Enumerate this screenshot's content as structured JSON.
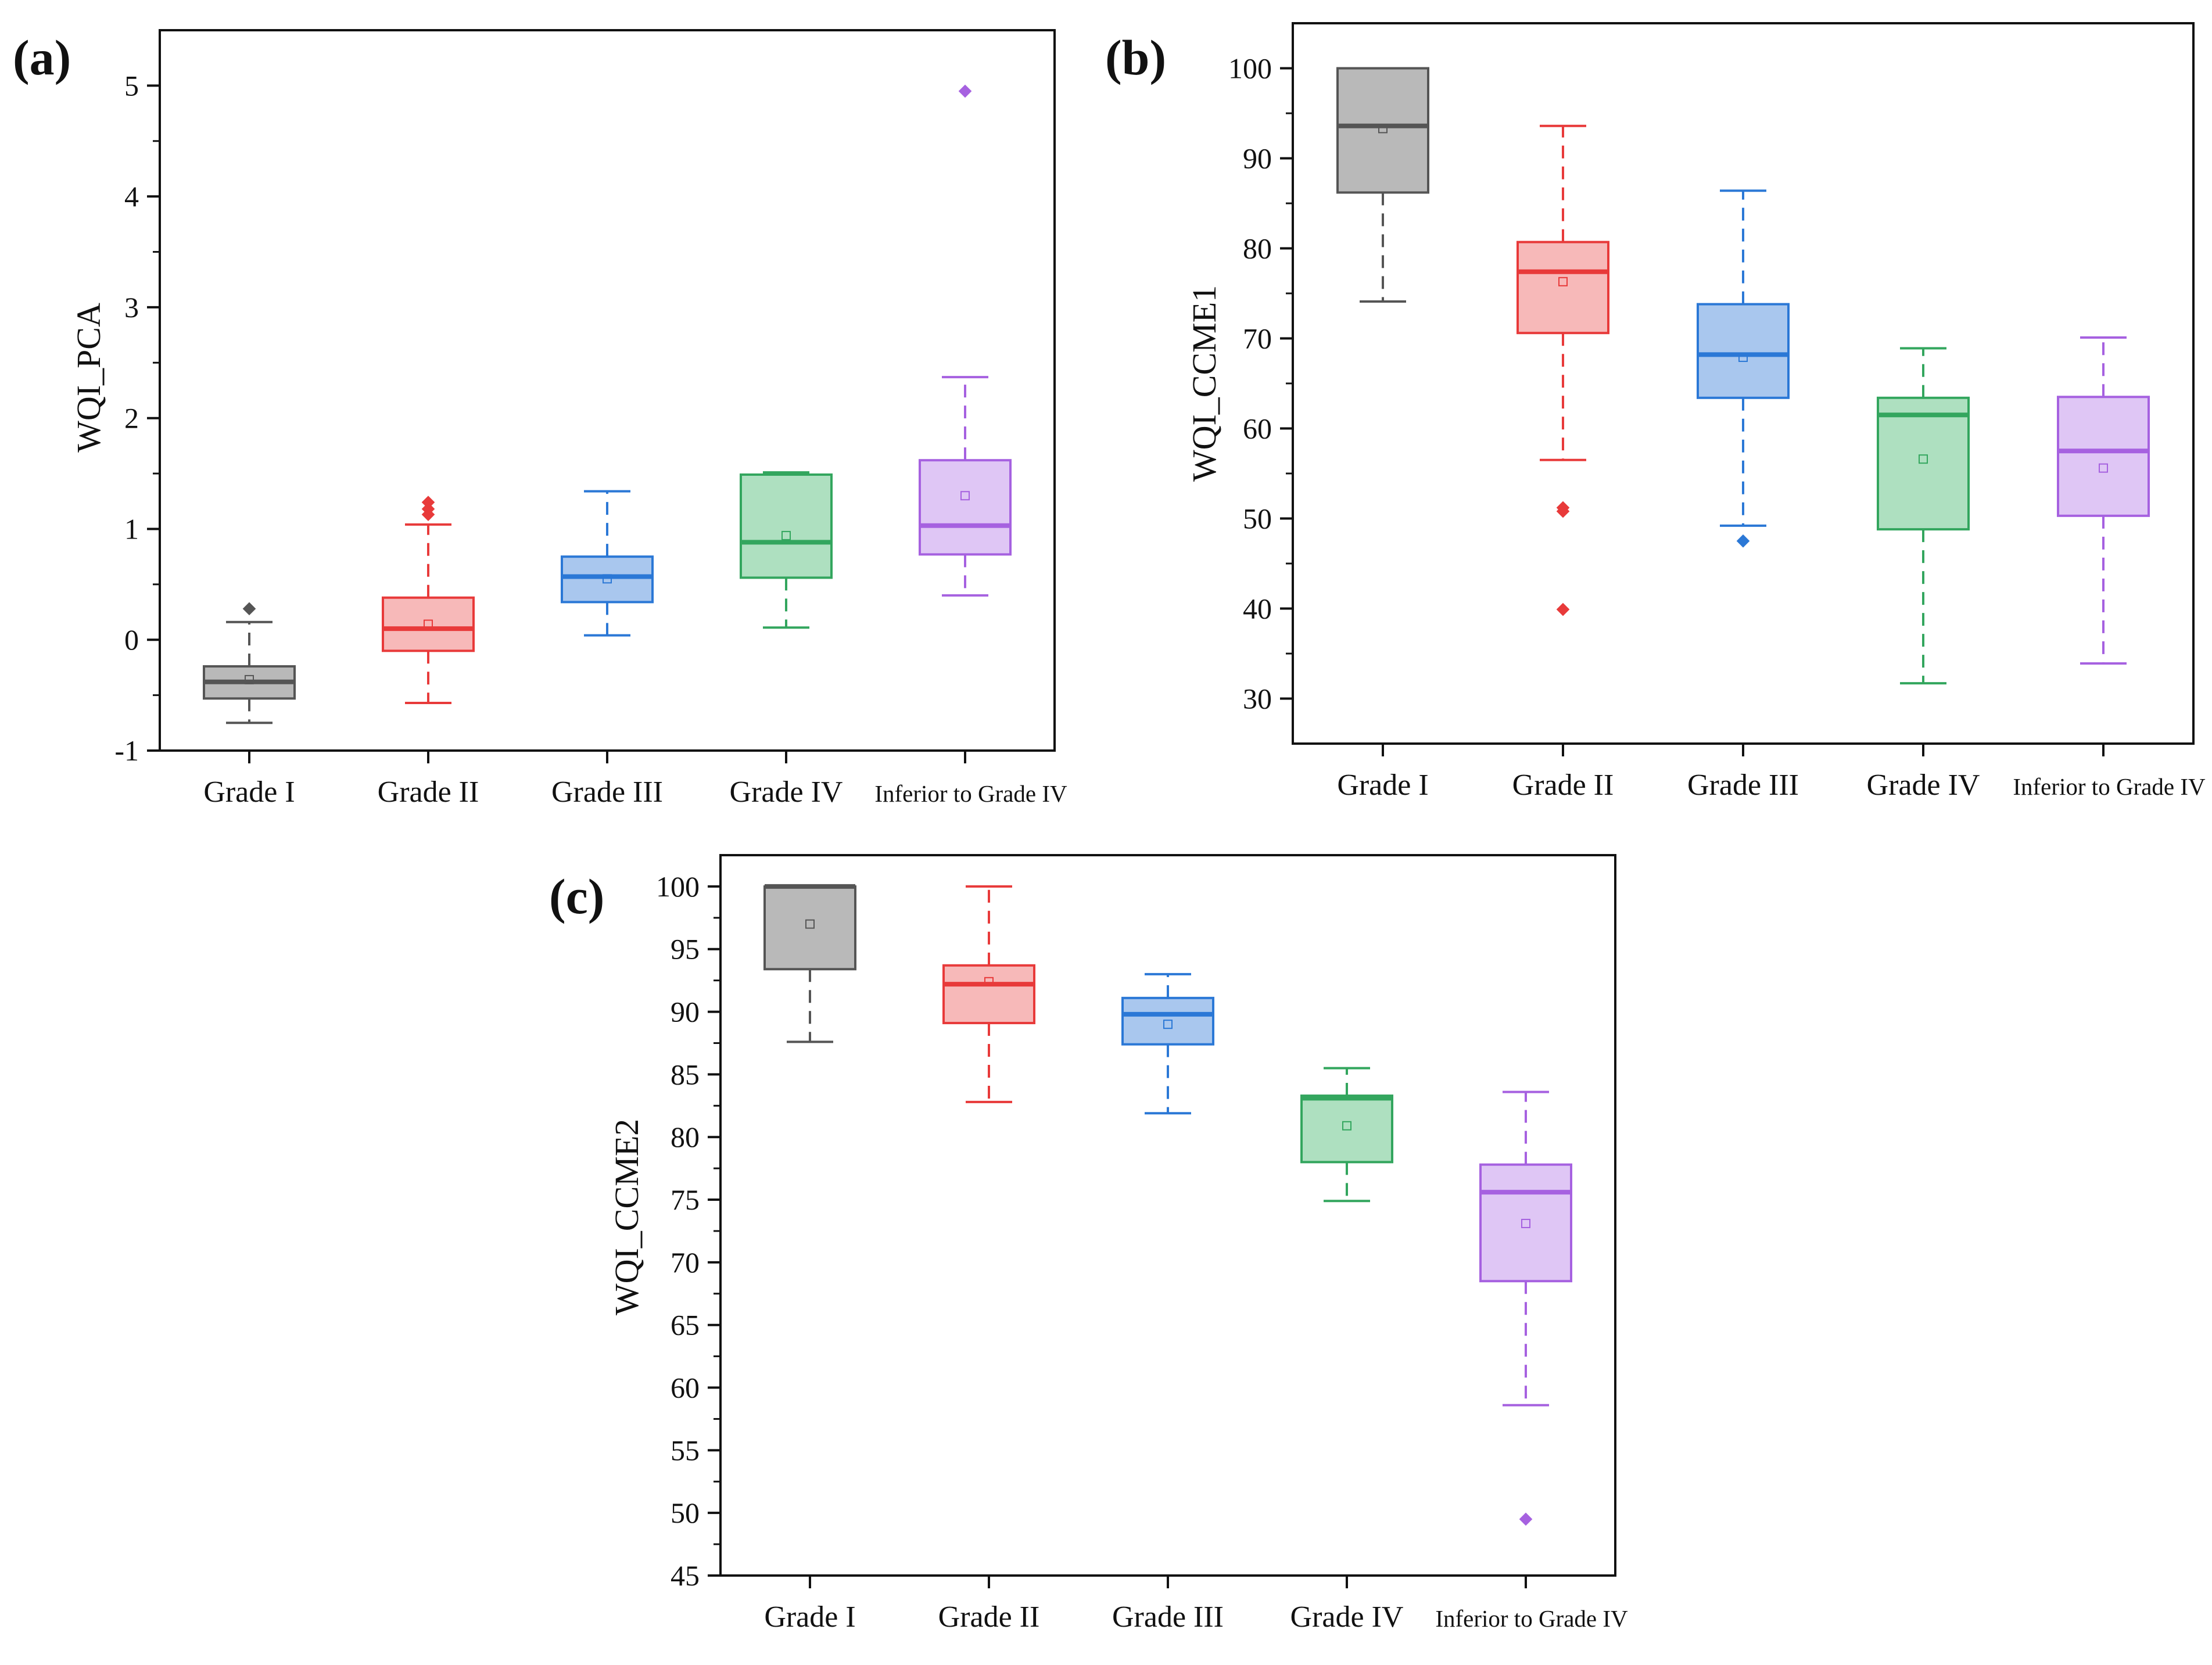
{
  "figure": {
    "categories": [
      "Grade I",
      "Grade II",
      "Grade III",
      "Grade IV",
      "Inferior to Grade IV"
    ],
    "colors": {
      "Grade I": "#555555",
      "Grade II": "#e83a3a",
      "Grade III": "#2b78d6",
      "Grade IV": "#33a65e",
      "Inferior to Grade IV": "#a661e0"
    },
    "fill_colors": {
      "Grade I": "#b9b9b9",
      "Grade II": "#f7b9b9",
      "Grade III": "#a9c7ee",
      "Grade IV": "#aee0c0",
      "Inferior to Grade IV": "#dfc6f5"
    }
  },
  "chart_data": [
    {
      "type": "box",
      "panel": "(a)",
      "title": "",
      "xlabel": "",
      "ylabel": "WQI_PCA",
      "ylim": [
        -1,
        5.5
      ],
      "yticks": [
        -1,
        0,
        1,
        2,
        3,
        4,
        5
      ],
      "ytick_labels": [
        "-1",
        "0",
        "1",
        "2",
        "3",
        "4",
        "5"
      ],
      "minor_ticks": true,
      "categories": [
        "Grade I",
        "Grade II",
        "Grade III",
        "Grade IV",
        "Inferior to Grade IV"
      ],
      "boxes": [
        {
          "whisker_low": -0.75,
          "q1": -0.53,
          "median": -0.38,
          "q3": -0.24,
          "whisker_high": 0.16,
          "mean": -0.36,
          "outliers": [
            0.28
          ]
        },
        {
          "whisker_low": -0.57,
          "q1": -0.1,
          "median": 0.1,
          "q3": 0.38,
          "whisker_high": 1.04,
          "mean": 0.14,
          "outliers": [
            1.13,
            1.18,
            1.24
          ]
        },
        {
          "whisker_low": 0.04,
          "q1": 0.34,
          "median": 0.57,
          "q3": 0.75,
          "whisker_high": 1.34,
          "mean": 0.55,
          "outliers": []
        },
        {
          "whisker_low": 0.11,
          "q1": 0.56,
          "median": 0.88,
          "q3": 1.49,
          "whisker_high": 1.51,
          "mean": 0.94,
          "outliers": []
        },
        {
          "whisker_low": 0.4,
          "q1": 0.77,
          "median": 1.03,
          "q3": 1.62,
          "whisker_high": 2.37,
          "mean": 1.3,
          "outliers": [
            4.95
          ]
        }
      ]
    },
    {
      "type": "box",
      "panel": "(b)",
      "title": "",
      "xlabel": "",
      "ylabel": "WQI_CCME1",
      "ylim": [
        25,
        105
      ],
      "yticks": [
        30,
        40,
        50,
        60,
        70,
        80,
        90,
        100
      ],
      "ytick_labels": [
        "30",
        "40",
        "50",
        "60",
        "70",
        "80",
        "90",
        "100"
      ],
      "minor_ticks": true,
      "categories": [
        "Grade I",
        "Grade II",
        "Grade III",
        "Grade IV",
        "Inferior to Grade IV"
      ],
      "boxes": [
        {
          "whisker_low": 74.1,
          "q1": 86.2,
          "median": 93.6,
          "q3": 100,
          "whisker_high": 100,
          "mean": 93.3,
          "outliers": []
        },
        {
          "whisker_low": 56.5,
          "q1": 70.6,
          "median": 77.4,
          "q3": 80.7,
          "whisker_high": 93.6,
          "mean": 76.3,
          "outliers": [
            39.9,
            50.8,
            51.2
          ]
        },
        {
          "whisker_low": 49.2,
          "q1": 63.4,
          "median": 68.2,
          "q3": 73.8,
          "whisker_high": 86.4,
          "mean": 67.9,
          "outliers": [
            47.5
          ]
        },
        {
          "whisker_low": 31.7,
          "q1": 48.8,
          "median": 61.5,
          "q3": 63.4,
          "whisker_high": 68.9,
          "mean": 56.6,
          "outliers": []
        },
        {
          "whisker_low": 33.9,
          "q1": 50.3,
          "median": 57.5,
          "q3": 63.5,
          "whisker_high": 70.1,
          "mean": 55.6,
          "outliers": []
        }
      ]
    },
    {
      "type": "box",
      "panel": "(c)",
      "title": "",
      "xlabel": "",
      "ylabel": "WQI_CCME2",
      "ylim": [
        45,
        102.5
      ],
      "yticks": [
        45,
        50,
        55,
        60,
        65,
        70,
        75,
        80,
        85,
        90,
        95,
        100
      ],
      "ytick_labels": [
        "45",
        "50",
        "55",
        "60",
        "65",
        "70",
        "75",
        "80",
        "85",
        "90",
        "95",
        "100"
      ],
      "minor_ticks": true,
      "categories": [
        "Grade I",
        "Grade II",
        "Grade III",
        "Grade IV",
        "Inferior to Grade IV"
      ],
      "boxes": [
        {
          "whisker_low": 87.6,
          "q1": 93.4,
          "median": 100,
          "q3": 100,
          "whisker_high": 100,
          "mean": 97,
          "outliers": []
        },
        {
          "whisker_low": 82.8,
          "q1": 89.1,
          "median": 92.2,
          "q3": 93.7,
          "whisker_high": 100,
          "mean": 92.4,
          "outliers": []
        },
        {
          "whisker_low": 81.9,
          "q1": 87.4,
          "median": 89.8,
          "q3": 91.1,
          "whisker_high": 93,
          "mean": 89,
          "outliers": []
        },
        {
          "whisker_low": 74.9,
          "q1": 78,
          "median": 83.1,
          "q3": 83.3,
          "whisker_high": 85.5,
          "mean": 80.9,
          "outliers": []
        },
        {
          "whisker_low": 58.6,
          "q1": 68.5,
          "median": 75.6,
          "q3": 77.8,
          "whisker_high": 83.6,
          "mean": 73.1,
          "outliers": [
            49.5
          ]
        }
      ]
    }
  ]
}
